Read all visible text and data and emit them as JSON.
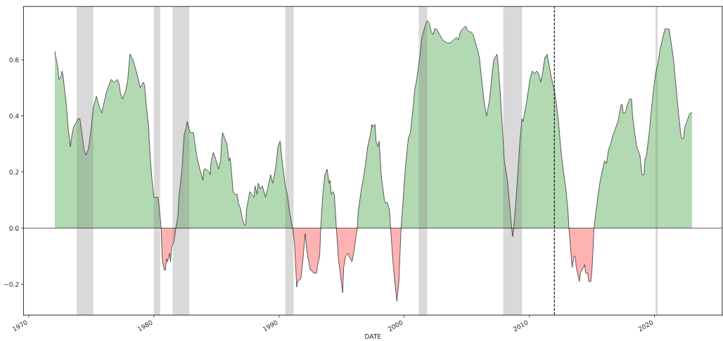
{
  "chart_data": {
    "type": "area",
    "xlabel": "DATE",
    "xlim": [
      "1969-08",
      "2025-06"
    ],
    "xticks": [
      "1970",
      "1980",
      "1990",
      "2000",
      "2010",
      "2020"
    ],
    "ylim": [
      -0.31,
      0.79
    ],
    "yticks": [
      {
        "value": -0.2,
        "label": "−0.2"
      },
      {
        "value": 0,
        "label": "0.0"
      },
      {
        "value": 0.2,
        "label": "0.2"
      },
      {
        "value": 0.4,
        "label": "0.4"
      },
      {
        "value": 0.6,
        "label": "0.6"
      }
    ],
    "series": [
      {
        "color": "#b2d9b2",
        "x": [
          "1972-02",
          "1972-05",
          "1972-06",
          "1972-08",
          "1972-09",
          "1972-10",
          "1973-01",
          "1973-03",
          "1973-05",
          "1973-06",
          "1973-08",
          "1973-11",
          "1973-12",
          "1974-02",
          "1974-04",
          "1974-06",
          "1974-08",
          "1974-10",
          "1974-11",
          "1975-01",
          "1975-03",
          "1975-06",
          "1975-08",
          "1975-09",
          "1975-11",
          "1976-02",
          "1976-04",
          "1976-06",
          "1976-08",
          "1976-11",
          "1977-02",
          "1977-04",
          "1977-05",
          "1977-07",
          "1977-10",
          "1977-12",
          "1978-02",
          "1978-05",
          "1978-08",
          "1978-10",
          "1978-12",
          "1979-03",
          "1979-04",
          "1979-06",
          "1979-08",
          "1979-09",
          "1979-11",
          "1980-01",
          "1980-03",
          "1980-05",
          "1980-06",
          "1980-08"
        ],
        "values": [
          0.63,
          0.57,
          0.53,
          0.54,
          0.56,
          0.54,
          0.44,
          0.35,
          0.29,
          0.32,
          0.36,
          0.38,
          0.39,
          0.39,
          0.34,
          0.28,
          0.26,
          0.28,
          0.3,
          0.36,
          0.43,
          0.47,
          0.44,
          0.43,
          0.41,
          0.46,
          0.49,
          0.51,
          0.53,
          0.52,
          0.53,
          0.51,
          0.48,
          0.46,
          0.49,
          0.53,
          0.62,
          0.6,
          0.56,
          0.53,
          0.5,
          0.52,
          0.51,
          0.43,
          0.36,
          0.28,
          0.18,
          0.11,
          0.11,
          0.11,
          0.08,
          0
        ]
      },
      {
        "color": "#ffb2b2",
        "x": [
          "1980-08",
          "1980-09",
          "1980-11",
          "1980-12",
          "1981-01",
          "1981-02",
          "1981-04",
          "1981-05",
          "1981-06",
          "1981-08",
          "1981-09",
          "1981-10"
        ],
        "values": [
          0,
          -0.11,
          -0.15,
          -0.15,
          -0.11,
          -0.12,
          -0.09,
          -0.12,
          -0.07,
          -0.05,
          -0.03,
          0
        ]
      },
      {
        "color": "#b2d9b2",
        "x": [
          "1981-10",
          "1981-12",
          "1982-01",
          "1982-04",
          "1982-06",
          "1982-08",
          "1982-09",
          "1982-11",
          "1982-12",
          "1983-03",
          "1983-04",
          "1983-06",
          "1983-09",
          "1983-10",
          "1983-12",
          "1984-01",
          "1984-03",
          "1984-06",
          "1984-07",
          "1984-08",
          "1984-10",
          "1984-12",
          "1985-03",
          "1985-05",
          "1985-06",
          "1985-07",
          "1985-09",
          "1985-11",
          "1986-01",
          "1986-02",
          "1986-03",
          "1986-05",
          "1986-07",
          "1986-09",
          "1986-10",
          "1986-12",
          "1987-02",
          "1987-04",
          "1987-05",
          "1987-06",
          "1987-08",
          "1987-09",
          "1987-11",
          "1988-01",
          "1988-02",
          "1988-04",
          "1988-05",
          "1988-07",
          "1988-09",
          "1988-12",
          "1989-02",
          "1989-05",
          "1989-07",
          "1989-10",
          "1989-12",
          "1990-02",
          "1990-04",
          "1990-07",
          "1990-09",
          "1990-11",
          "1991-02"
        ],
        "values": [
          0,
          0.04,
          0.11,
          0.21,
          0.33,
          0.36,
          0.38,
          0.35,
          0.34,
          0.34,
          0.31,
          0.26,
          0.21,
          0.2,
          0.17,
          0.21,
          0.21,
          0.2,
          0.19,
          0.24,
          0.27,
          0.25,
          0.21,
          0.24,
          0.31,
          0.34,
          0.32,
          0.3,
          0.24,
          0.25,
          0.22,
          0.13,
          0.12,
          0.12,
          0.09,
          0.07,
          0.03,
          0.01,
          0.01,
          0.07,
          0.11,
          0.13,
          0.12,
          0.11,
          0.15,
          0.12,
          0.16,
          0.14,
          0.15,
          0.11,
          0.14,
          0.19,
          0.16,
          0.22,
          0.29,
          0.31,
          0.24,
          0.15,
          0.12,
          0.06,
          0
        ]
      },
      {
        "color": "#ffb2b2",
        "x": [
          "1991-02",
          "1991-04",
          "1991-06",
          "1991-07",
          "1991-10",
          "1991-12",
          "1992-02",
          "1992-04",
          "1992-07",
          "1992-08",
          "1992-10",
          "1993-01",
          "1993-02",
          "1993-04",
          "1993-05"
        ],
        "values": [
          0,
          -0.06,
          -0.21,
          -0.19,
          -0.18,
          -0.11,
          -0.02,
          -0.09,
          -0.15,
          -0.15,
          -0.16,
          -0.16,
          -0.13,
          -0.1,
          0
        ]
      },
      {
        "color": "#b2d9b2",
        "x": [
          "1993-05",
          "1993-07",
          "1993-09",
          "1993-11",
          "1994-01",
          "1994-02",
          "1994-03",
          "1994-05",
          "1994-06",
          "1994-08"
        ],
        "values": [
          0,
          0.12,
          0.19,
          0.21,
          0.16,
          0.17,
          0.12,
          0.13,
          0.12,
          0
        ]
      },
      {
        "color": "#ffb2b2",
        "x": [
          "1994-08",
          "1994-10",
          "1994-12",
          "1995-02",
          "1995-03",
          "1995-04",
          "1995-05",
          "1995-07",
          "1995-08",
          "1995-11",
          "1996-01",
          "1996-02",
          "1996-04"
        ],
        "values": [
          0,
          -0.11,
          -0.17,
          -0.23,
          -0.14,
          -0.12,
          -0.1,
          -0.09,
          -0.1,
          -0.12,
          -0.08,
          -0.05,
          0
        ]
      },
      {
        "color": "#b2d9b2",
        "x": [
          "1996-04",
          "1996-05",
          "1996-08",
          "1996-10",
          "1996-12",
          "1997-02",
          "1997-05",
          "1997-06",
          "1997-07",
          "1997-09",
          "1997-10",
          "1997-12",
          "1998-01",
          "1998-03",
          "1998-06",
          "1998-07",
          "1998-09",
          "1998-11",
          "1998-12"
        ],
        "values": [
          0,
          0.06,
          0.14,
          0.18,
          0.23,
          0.29,
          0.34,
          0.37,
          0.36,
          0.37,
          0.31,
          0.29,
          0.31,
          0.19,
          0.1,
          0.09,
          0.09,
          0.06,
          0
        ]
      },
      {
        "color": "#ffb2b2",
        "x": [
          "1998-12",
          "1999-02",
          "1999-04",
          "1999-06",
          "1999-08",
          "1999-09",
          "1999-10"
        ],
        "values": [
          0,
          -0.11,
          -0.19,
          -0.26,
          -0.19,
          -0.09,
          0
        ]
      },
      {
        "color": "#b2d9b2",
        "x": [
          "1999-10",
          "1999-12",
          "2000-02",
          "2000-05",
          "2000-07",
          "2000-09",
          "2000-11",
          "2001-01",
          "2001-04",
          "2001-06",
          "2001-09",
          "2001-11",
          "2002-01",
          "2002-03",
          "2002-05",
          "2002-06",
          "2002-08",
          "2002-11",
          "2003-02",
          "2003-06",
          "2003-09",
          "2003-12",
          "2004-03",
          "2004-05",
          "2004-07",
          "2004-09",
          "2004-12",
          "2005-01",
          "2005-03",
          "2005-05",
          "2005-07",
          "2005-11",
          "2006-01",
          "2006-03",
          "2006-06",
          "2006-08",
          "2006-11",
          "2007-01",
          "2007-03",
          "2007-06",
          "2007-07",
          "2007-09",
          "2007-11",
          "2008-01",
          "2008-04",
          "2008-06",
          "2008-08"
        ],
        "values": [
          0,
          0.1,
          0.21,
          0.32,
          0.34,
          0.41,
          0.49,
          0.53,
          0.61,
          0.68,
          0.72,
          0.74,
          0.73,
          0.7,
          0.69,
          0.71,
          0.71,
          0.69,
          0.67,
          0.66,
          0.66,
          0.67,
          0.68,
          0.67,
          0.7,
          0.71,
          0.72,
          0.71,
          0.7,
          0.7,
          0.69,
          0.64,
          0.61,
          0.54,
          0.44,
          0.4,
          0.46,
          0.54,
          0.6,
          0.62,
          0.59,
          0.49,
          0.37,
          0.24,
          0.17,
          0.09,
          0
        ]
      },
      {
        "color": "#ffb2b2",
        "x": [
          "2008-08",
          "2008-09",
          "2008-10"
        ],
        "values": [
          0,
          -0.03,
          0
        ]
      },
      {
        "color": "#b2d9b2",
        "x": [
          "2008-10",
          "2008-12",
          "2009-02",
          "2009-04",
          "2009-06",
          "2009-07",
          "2009-10",
          "2009-12",
          "2010-02",
          "2010-04",
          "2010-06",
          "2010-08",
          "2010-10",
          "2010-12",
          "2011-02",
          "2011-04",
          "2011-05",
          "2011-06",
          "2011-08",
          "2011-10",
          "2012-01",
          "2012-03",
          "2012-05",
          "2012-07",
          "2012-09",
          "2012-12",
          "2013-02",
          "2013-03"
        ],
        "values": [
          0,
          0.09,
          0.2,
          0.31,
          0.39,
          0.38,
          0.44,
          0.49,
          0.54,
          0.56,
          0.55,
          0.56,
          0.55,
          0.52,
          0.56,
          0.61,
          0.61,
          0.62,
          0.58,
          0.54,
          0.49,
          0.44,
          0.38,
          0.29,
          0.22,
          0.14,
          0.06,
          0
        ]
      },
      {
        "color": "#ffb2b2",
        "x": [
          "2013-03",
          "2013-05",
          "2013-06",
          "2013-08",
          "2013-09",
          "2013-10",
          "2014-01",
          "2014-02",
          "2014-05",
          "2014-06",
          "2014-07",
          "2014-09",
          "2014-10",
          "2014-12",
          "2015-01",
          "2015-02",
          "2015-03"
        ],
        "values": [
          0,
          -0.09,
          -0.14,
          -0.1,
          -0.1,
          -0.14,
          -0.19,
          -0.16,
          -0.14,
          -0.13,
          -0.16,
          -0.16,
          -0.19,
          -0.19,
          -0.15,
          -0.08,
          0
        ]
      },
      {
        "color": "#b2d9b2",
        "x": [
          "2015-03",
          "2015-05",
          "2015-07",
          "2015-09",
          "2015-12",
          "2016-01",
          "2016-03",
          "2016-05",
          "2016-07",
          "2016-09",
          "2016-12",
          "2017-02",
          "2017-05",
          "2017-06",
          "2017-07",
          "2017-09",
          "2017-11",
          "2018-01",
          "2018-03",
          "2018-04",
          "2018-06",
          "2018-08",
          "2018-11",
          "2019-01",
          "2019-03",
          "2019-04",
          "2019-05",
          "2019-08",
          "2019-10",
          "2019-12",
          "2020-02",
          "2020-05",
          "2020-06",
          "2020-09",
          "2020-11",
          "2021-01",
          "2021-03",
          "2021-05",
          "2021-07",
          "2021-09",
          "2021-12",
          "2022-02",
          "2022-03",
          "2022-05",
          "2022-06",
          "2022-09",
          "2022-11",
          "2022-12",
          "2023-01"
        ],
        "values": [
          0,
          0.06,
          0.12,
          0.17,
          0.22,
          0.24,
          0.23,
          0.28,
          0.3,
          0.33,
          0.36,
          0.38,
          0.44,
          0.44,
          0.41,
          0.41,
          0.44,
          0.46,
          0.46,
          0.4,
          0.34,
          0.29,
          0.26,
          0.19,
          0.19,
          0.25,
          0.25,
          0.34,
          0.42,
          0.49,
          0.55,
          0.6,
          0.63,
          0.68,
          0.71,
          0.71,
          0.71,
          0.66,
          0.61,
          0.53,
          0.41,
          0.34,
          0.32,
          0.32,
          0.36,
          0.39,
          0.41,
          0.41,
          0.41
        ]
      }
    ],
    "bands": [
      {
        "axis": "x",
        "from": "1973-11",
        "to": "1975-03",
        "color": "#808080"
      },
      {
        "axis": "x",
        "from": "1980-01",
        "to": "1980-07",
        "color": "#808080"
      },
      {
        "axis": "x",
        "from": "1981-07",
        "to": "1982-11",
        "color": "#808080"
      },
      {
        "axis": "x",
        "from": "1990-07",
        "to": "1991-03",
        "color": "#808080"
      },
      {
        "axis": "x",
        "from": "2001-03",
        "to": "2001-11",
        "color": "#808080"
      },
      {
        "axis": "x",
        "from": "2007-12",
        "to": "2009-06",
        "color": "#808080"
      },
      {
        "axis": "x",
        "from": "2020-02",
        "to": "2020-04",
        "color": "#808080"
      }
    ],
    "ref_lines": [
      {
        "axis": "y",
        "value": 0,
        "color": "#000000",
        "line_style": "solid"
      },
      {
        "axis": "x",
        "value": "2012-01",
        "color": "#000000",
        "line_style": "dashed"
      }
    ]
  }
}
